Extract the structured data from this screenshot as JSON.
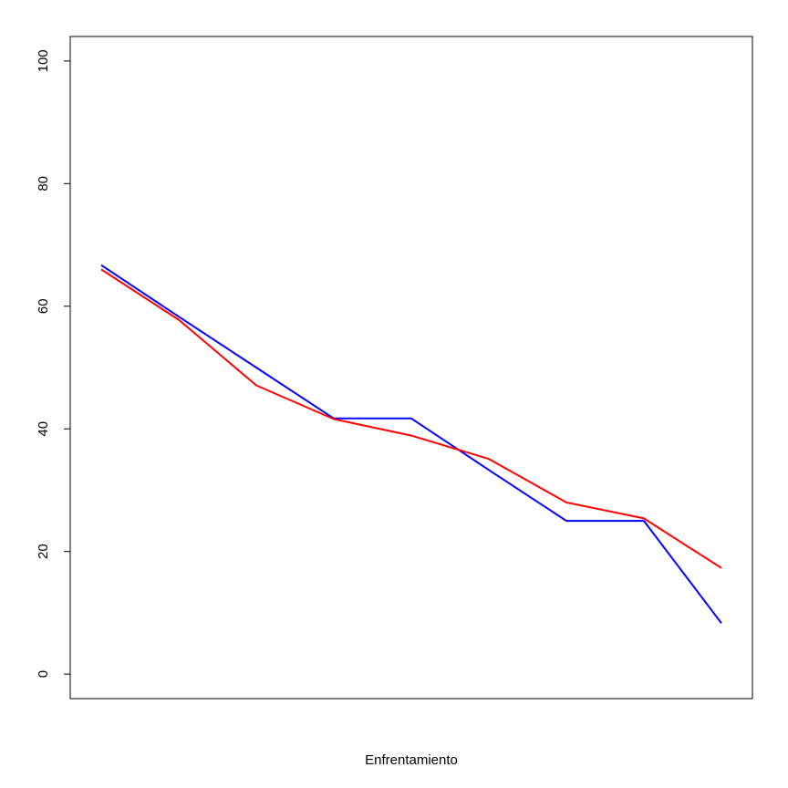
{
  "chart_data": {
    "type": "line",
    "title": "",
    "xlabel": "Enfrentamiento",
    "ylabel": "",
    "x": [
      1,
      2,
      3,
      4,
      5,
      6,
      7,
      8,
      9
    ],
    "xlim": [
      0.6,
      9.4
    ],
    "ylim": [
      -4,
      104
    ],
    "yticks": [
      0,
      20,
      40,
      60,
      80,
      100
    ],
    "grid": false,
    "legend": "none",
    "series": [
      {
        "color": "#0000ff",
        "values": [
          66.7,
          58.3,
          50.0,
          41.7,
          41.7,
          33.3,
          25.0,
          25.0,
          8.3
        ]
      },
      {
        "color": "#ff0000",
        "values": [
          66.0,
          57.8,
          47.1,
          41.6,
          38.9,
          35.1,
          28.0,
          25.4,
          17.3
        ]
      }
    ]
  }
}
